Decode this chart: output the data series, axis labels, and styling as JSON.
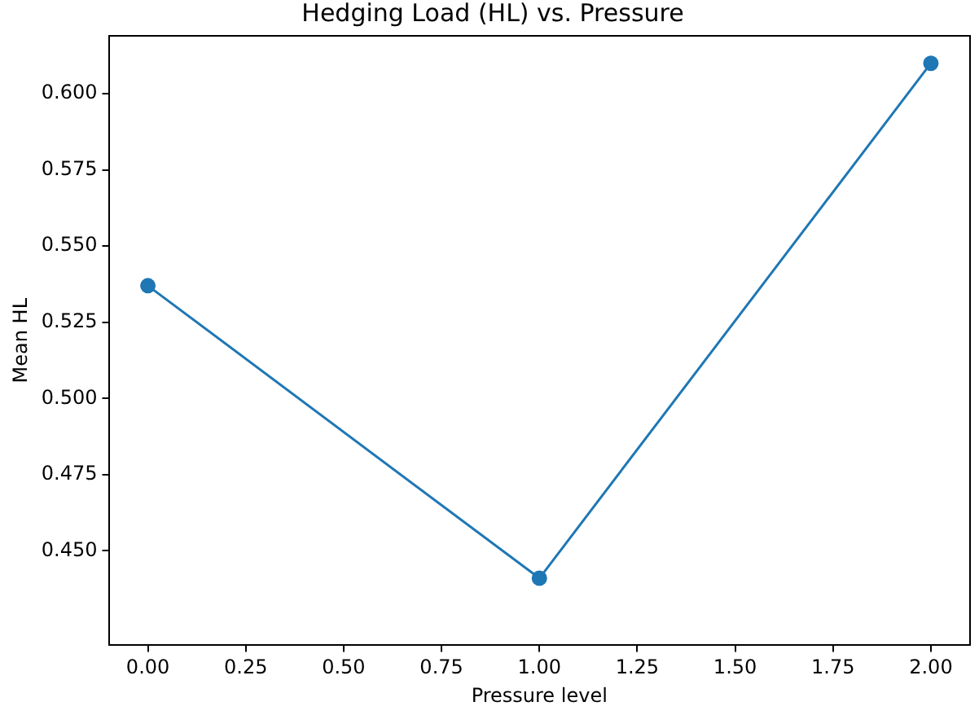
{
  "chart_data": {
    "type": "line",
    "title": "Hedging Load (HL) vs. Pressure",
    "xlabel": "Pressure level",
    "ylabel": "Mean HL",
    "x": [
      0,
      1,
      2
    ],
    "series": [
      {
        "color": "#1f77b4",
        "values": [
          0.537,
          0.441,
          0.61
        ]
      }
    ],
    "xlim": [
      -0.1,
      2.1
    ],
    "xticks": [
      {
        "value": 0,
        "label": "0.00"
      },
      {
        "value": 0.25,
        "label": "0.25"
      },
      {
        "value": 0.5,
        "label": "0.50"
      },
      {
        "value": 0.75,
        "label": "0.75"
      },
      {
        "value": 1,
        "label": "1.00"
      },
      {
        "value": 1.25,
        "label": "1.25"
      },
      {
        "value": 1.5,
        "label": "1.50"
      },
      {
        "value": 1.75,
        "label": "1.75"
      },
      {
        "value": 2,
        "label": "2.00"
      }
    ],
    "ylim": [
      0.419,
      0.619
    ],
    "yticks": [
      {
        "value": 0.45,
        "label": "0.450"
      },
      {
        "value": 0.475,
        "label": "0.475"
      },
      {
        "value": 0.5,
        "label": "0.500"
      },
      {
        "value": 0.525,
        "label": "0.525"
      },
      {
        "value": 0.55,
        "label": "0.550"
      },
      {
        "value": 0.575,
        "label": "0.575"
      },
      {
        "value": 0.6,
        "label": "0.600"
      }
    ],
    "marker": "circle",
    "line_style": "solid",
    "grid": false,
    "legend": false
  }
}
